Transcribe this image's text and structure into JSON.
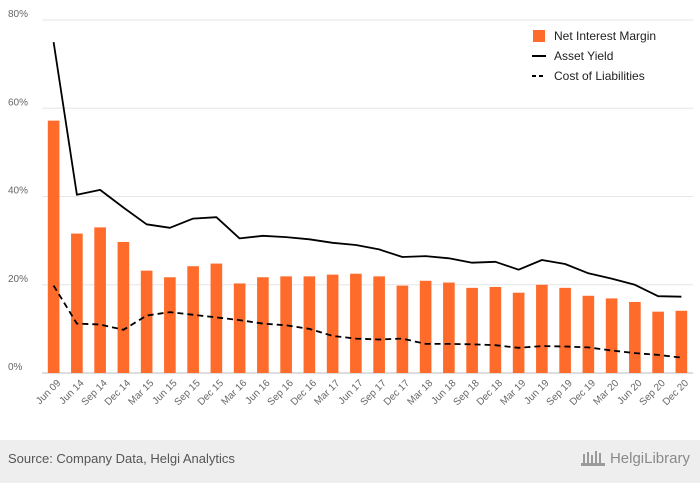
{
  "chart_data": {
    "type": "bar+line",
    "categories": [
      "Jun 09",
      "Jun 14",
      "Sep 14",
      "Dec 14",
      "Mar 15",
      "Jun 15",
      "Sep 15",
      "Dec 15",
      "Mar 16",
      "Jun 16",
      "Sep 16",
      "Dec 16",
      "Mar 17",
      "Jun 17",
      "Sep 17",
      "Dec 17",
      "Mar 18",
      "Jun 18",
      "Sep 18",
      "Dec 18",
      "Mar 19",
      "Jun 19",
      "Sep 19",
      "Dec 19",
      "Mar 20",
      "Jun 20",
      "Sep 20",
      "Dec 20"
    ],
    "series": [
      {
        "name": "Net Interest Margin",
        "kind": "bar",
        "color": "#ff6b2b",
        "values": [
          57.2,
          31.6,
          33.0,
          29.7,
          23.2,
          21.7,
          24.2,
          24.8,
          20.3,
          21.7,
          21.9,
          21.9,
          22.3,
          22.5,
          21.9,
          19.8,
          20.9,
          20.5,
          19.3,
          19.5,
          18.2,
          20.0,
          19.3,
          17.5,
          16.9,
          16.1,
          13.9,
          14.1
        ]
      },
      {
        "name": "Asset Yield",
        "kind": "line",
        "style": "solid",
        "color": "#000000",
        "values": [
          75.0,
          40.4,
          41.5,
          37.5,
          33.7,
          32.9,
          35.0,
          35.3,
          30.5,
          31.1,
          30.8,
          30.3,
          29.5,
          29.0,
          28.0,
          26.3,
          26.5,
          26.0,
          25.0,
          25.2,
          23.4,
          25.6,
          24.7,
          22.6,
          21.4,
          20.0,
          17.4,
          17.3
        ]
      },
      {
        "name": "Cost of Liabilities",
        "kind": "line",
        "style": "dashed",
        "color": "#000000",
        "values": [
          19.8,
          11.2,
          11.0,
          9.8,
          13.0,
          13.8,
          13.2,
          12.6,
          12.0,
          11.2,
          10.8,
          10.0,
          8.4,
          7.8,
          7.6,
          7.8,
          6.6,
          6.6,
          6.5,
          6.3,
          5.7,
          6.1,
          6.0,
          5.8,
          5.1,
          4.5,
          4.1,
          3.5
        ]
      }
    ],
    "yticks": [
      "0%",
      "20%",
      "40%",
      "60%",
      "80%"
    ],
    "ylim": [
      0,
      80
    ],
    "grid": true,
    "legend_position": "top-right"
  },
  "footer": {
    "source": "Source: Company Data, Helgi Analytics",
    "logo_text": "HelgiLibrary"
  }
}
